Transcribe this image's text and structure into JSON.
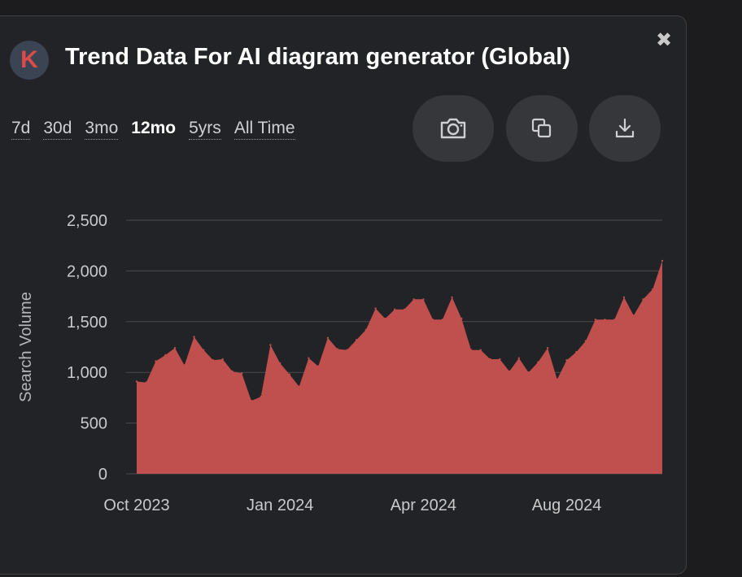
{
  "header": {
    "logo_letter": "K",
    "title": "Trend Data For AI diagram generator (Global)",
    "close_symbol": "✖"
  },
  "ranges": [
    {
      "label": "7d",
      "active": false
    },
    {
      "label": "30d",
      "active": false
    },
    {
      "label": "3mo",
      "active": false
    },
    {
      "label": "12mo",
      "active": true
    },
    {
      "label": "5yrs",
      "active": false
    },
    {
      "label": "All Time",
      "active": false
    }
  ],
  "toolbar": {
    "screenshot_icon": "camera-icon",
    "copy_icon": "copy-icon",
    "download_icon": "download-icon"
  },
  "colors": {
    "area_fill": "#c0504d",
    "grid": "#4a4b4f",
    "background": "#222326"
  },
  "chart_data": {
    "type": "area",
    "title": "",
    "xlabel": "",
    "ylabel": "Search Volume",
    "ylim": [
      0,
      2500
    ],
    "yticks": [
      {
        "value": 0,
        "label": "0"
      },
      {
        "value": 500,
        "label": "500"
      },
      {
        "value": 1000,
        "label": "1,000"
      },
      {
        "value": 1500,
        "label": "1,500"
      },
      {
        "value": 2000,
        "label": "2,000"
      },
      {
        "value": 2500,
        "label": "2,500"
      }
    ],
    "xticks": [
      {
        "index": 0,
        "label": "Oct 2023"
      },
      {
        "index": 15,
        "label": "Jan 2024"
      },
      {
        "index": 30,
        "label": "Apr 2024"
      },
      {
        "index": 45,
        "label": "Aug 2024"
      }
    ],
    "grid": true,
    "series": [
      {
        "values": [
          910,
          900,
          1110,
          1170,
          1240,
          1070,
          1350,
          1220,
          1120,
          1130,
          1010,
          990,
          720,
          760,
          1270,
          1090,
          980,
          860,
          1140,
          1060,
          1340,
          1230,
          1220,
          1320,
          1420,
          1630,
          1530,
          1620,
          1620,
          1720,
          1720,
          1520,
          1520,
          1740,
          1530,
          1220,
          1220,
          1130,
          1130,
          1010,
          1140,
          1000,
          1100,
          1240,
          930,
          1120,
          1200,
          1310,
          1520,
          1520,
          1520,
          1740,
          1560,
          1720,
          1820,
          2100
        ]
      }
    ]
  }
}
